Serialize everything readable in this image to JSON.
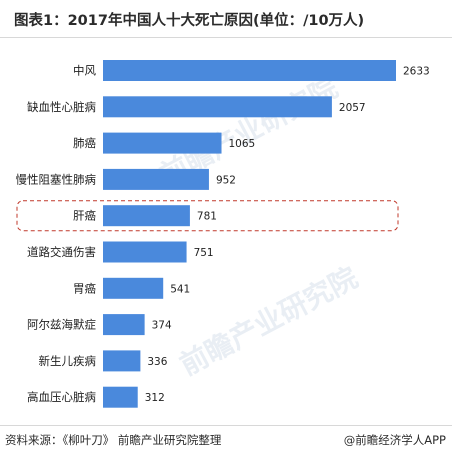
{
  "title": "图表1：2017年中国人十大死亡原因(单位：/10万人)",
  "source": "资料来源：《柳叶刀》 前瞻产业研究院整理",
  "brand": "@前瞻经济学人APP",
  "watermark": "前瞻产业研究院",
  "colors": {
    "bar": "#4a89dc",
    "highlight_border": "#c0392b"
  },
  "chart_data": {
    "type": "bar",
    "orientation": "horizontal",
    "title": "图表1：2017年中国人十大死亡原因(单位：/10万人)",
    "categories": [
      "中风",
      "缺血性心脏病",
      "肺癌",
      "慢性阻塞性肺病",
      "肝癌",
      "道路交通伤害",
      "胃癌",
      "阿尔兹海默症",
      "新生儿疾病",
      "高血压心脏病"
    ],
    "values": [
      2633,
      2057,
      1065,
      952,
      781,
      751,
      541,
      374,
      336,
      312
    ],
    "value_labels": [
      "2633",
      "2057",
      "1065",
      "952",
      "781",
      "751",
      "541",
      "374",
      "336",
      "312"
    ],
    "highlighted_category": "肝癌",
    "xlabel": "",
    "ylabel": "",
    "grid": false,
    "legend": "none"
  }
}
